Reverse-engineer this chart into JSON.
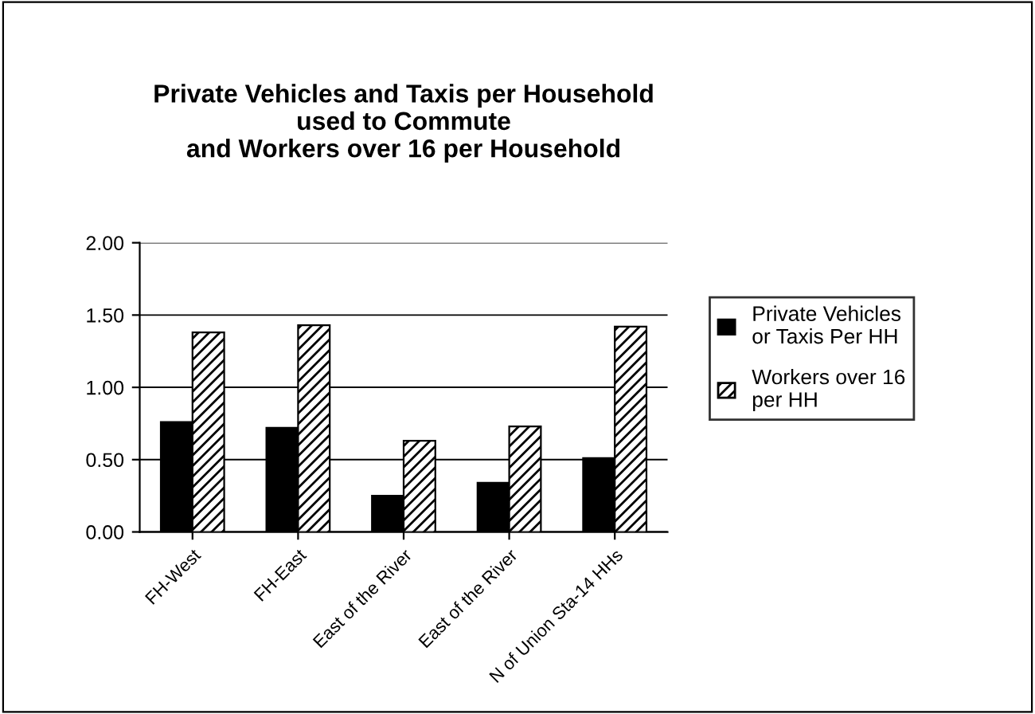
{
  "chart_data": {
    "type": "bar",
    "title": "Private Vehicles and Taxis per Household\nused to Commute\nand Workers over 16 per Household",
    "categories": [
      "FH-West",
      "FH-East",
      "East of the River",
      "East of the River",
      "N of Union Sta-14 HHs"
    ],
    "series": [
      {
        "name": "Private Vehicles or Taxis Per HH",
        "color": "#000000",
        "values": [
          0.76,
          0.72,
          0.25,
          0.34,
          0.51
        ]
      },
      {
        "name": "Workers over 16 per HH",
        "color": "#000000",
        "values": [
          1.38,
          1.43,
          0.63,
          0.73,
          1.42
        ]
      }
    ],
    "ylim": [
      0,
      2
    ],
    "yticks": [
      {
        "value": 0,
        "label": "0.00"
      },
      {
        "value": 0.5,
        "label": "0.50"
      },
      {
        "value": 1,
        "label": "1.00"
      },
      {
        "value": 1.5,
        "label": "1.50"
      },
      {
        "value": 2,
        "label": "2.00"
      }
    ],
    "grid": "y",
    "legend": "right"
  }
}
